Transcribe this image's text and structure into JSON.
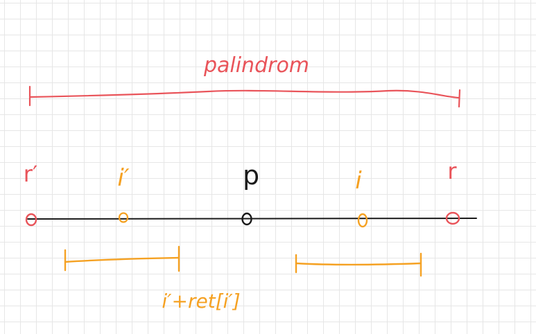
{
  "colors": {
    "red": "#e9545a",
    "orange": "#f5a122",
    "black": "#1a1a1a",
    "grid": "#e6e6e6",
    "background": "#ffffff"
  },
  "labels": {
    "palindrome": "palindrom",
    "r_prime": "r′",
    "i_prime": "i′",
    "p": "p",
    "i": "i",
    "r": "r",
    "formula": "i′+ret[i′]"
  }
}
